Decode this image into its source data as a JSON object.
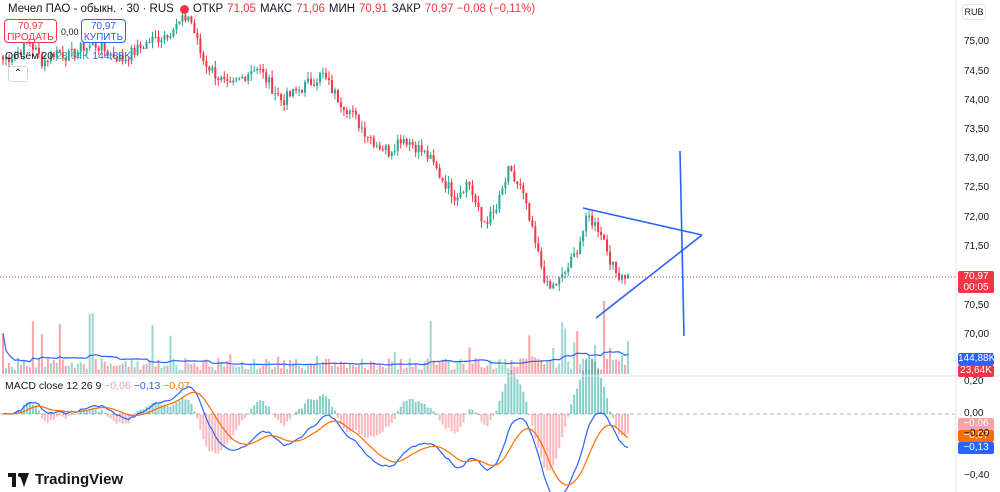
{
  "header": {
    "title": "Мечел ПАО - обыкн. · 30 · RUS",
    "ohlc": [
      {
        "key": "ОТКР",
        "value": "71,05"
      },
      {
        "key": "МАКС",
        "value": "71,06"
      },
      {
        "key": "МИН",
        "value": "70,91"
      },
      {
        "key": "ЗАКР",
        "value": "70,97 −0,08 (−0,11%)"
      }
    ]
  },
  "trade": {
    "sell_price": "70,97",
    "sell_label": "ПРОДАТЬ",
    "spread": "0,00",
    "buy_price": "70,97",
    "buy_label": "КУПИТЬ"
  },
  "volume_legend": {
    "name": "Объём 20",
    "v1": "23,64K",
    "v2": "144,88K"
  },
  "macd_legend": {
    "name": "MACD close 12 26 9",
    "hist": "−0,06",
    "macd": "−0,13",
    "signal": "−0,07"
  },
  "currency": "RUB",
  "colors": {
    "up": "#26a69a",
    "down": "#f23645",
    "macd": "#2962ff",
    "signal": "#ff6d00",
    "drawing": "#2962ff"
  },
  "price_axis": {
    "ticks": [
      "75,00",
      "74,50",
      "74,00",
      "73,50",
      "73,00",
      "72,50",
      "72,00",
      "71,50",
      "71,00",
      "70,50",
      "70,00"
    ],
    "current_price": "70,97",
    "countdown": "00:05"
  },
  "volume_axis": {
    "ma": "144,88K",
    "last": "23,64K"
  },
  "macd_axis": {
    "ticks": [
      "0,20",
      "0,00",
      "−0,20",
      "−0,40"
    ],
    "hist_value": "−0,06",
    "signal_value": "−0,07",
    "macd_value": "−0,13"
  },
  "chart_data": {
    "type": "candlestick",
    "interval": "30",
    "ylim": [
      69.6,
      75.4
    ],
    "close_path": [
      74.6,
      74.7,
      74.9,
      74.55,
      74.75,
      74.65,
      74.8,
      74.85,
      74.7,
      74.6,
      74.75,
      74.9,
      75.0,
      75.15,
      75.35,
      74.6,
      74.35,
      74.1,
      74.3,
      74.5,
      74.2,
      73.9,
      74.05,
      74.2,
      74.35,
      74.0,
      73.75,
      73.45,
      73.2,
      73.05,
      73.3,
      73.15,
      72.95,
      72.6,
      72.3,
      72.55,
      71.85,
      72.0,
      72.7,
      72.4,
      71.5,
      70.7,
      70.9,
      71.3,
      71.95,
      71.7,
      71.0,
      70.97
    ],
    "volume_ma": "144,88K",
    "macd": {
      "fast": 12,
      "slow": 26,
      "signal": 9,
      "macd": -0.13,
      "signal_value": -0.07,
      "hist": -0.06
    }
  }
}
